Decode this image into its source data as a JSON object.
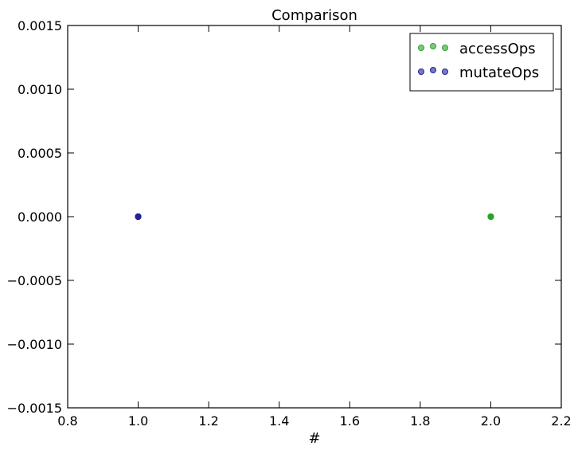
{
  "chart_data": {
    "type": "scatter",
    "title": "Comparison",
    "xlabel": "#",
    "ylabel": "",
    "xlim": [
      0.8,
      2.2
    ],
    "ylim": [
      -0.0015,
      0.0015
    ],
    "xticks": [
      "0.8",
      "1.0",
      "1.2",
      "1.4",
      "1.6",
      "1.8",
      "2.0",
      "2.2"
    ],
    "yticks": [
      "0.0015",
      "0.0010",
      "0.0005",
      "0.0000",
      "−0.0005",
      "−0.0010",
      "−0.0015"
    ],
    "grid": false,
    "legend_position": "top-right",
    "series": [
      {
        "name": "accessOps",
        "color": "#2ca02c",
        "points": [
          [
            2.0,
            0.0
          ],
          [
            2.0,
            0.0
          ],
          [
            2.0,
            0.0
          ],
          [
            2.0,
            0.0
          ],
          [
            2.0,
            0.0
          ]
        ]
      },
      {
        "name": "mutateOps",
        "color": "#1f1f9f",
        "points": [
          [
            1.0,
            0.0
          ],
          [
            1.0,
            0.0
          ],
          [
            1.0,
            0.0
          ],
          [
            1.0,
            0.0
          ],
          [
            1.0,
            0.0
          ]
        ]
      }
    ]
  }
}
